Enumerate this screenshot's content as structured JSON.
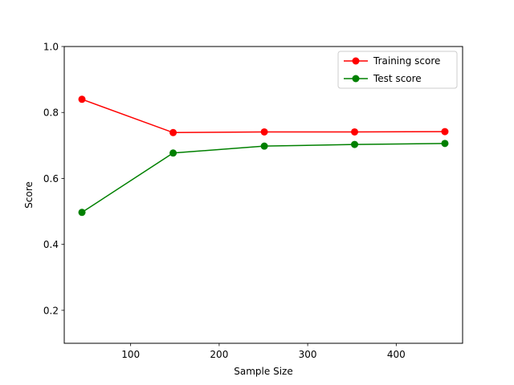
{
  "chart_data": {
    "type": "line",
    "xlabel": "Sample Size",
    "ylabel": "Score",
    "xlim": [
      25,
      475
    ],
    "ylim": [
      0.1,
      1.0
    ],
    "x_ticks": [
      100,
      200,
      300,
      400
    ],
    "x_tick_labels": [
      "100",
      "200",
      "300",
      "400"
    ],
    "y_ticks": [
      0.2,
      0.4,
      0.6,
      0.8,
      1.0
    ],
    "y_tick_labels": [
      "0.2",
      "0.4",
      "0.6",
      "0.8",
      "1.0"
    ],
    "grid": false,
    "legend_position": "top-right",
    "series": [
      {
        "name": "Training score",
        "color": "#ff0000",
        "marker": "circle",
        "x": [
          45,
          148,
          251,
          353,
          455
        ],
        "y": [
          0.84,
          0.739,
          0.741,
          0.741,
          0.742
        ]
      },
      {
        "name": "Test score",
        "color": "#008000",
        "marker": "circle",
        "x": [
          45,
          148,
          251,
          353,
          455
        ],
        "y": [
          0.497,
          0.677,
          0.698,
          0.703,
          0.706
        ]
      }
    ]
  }
}
